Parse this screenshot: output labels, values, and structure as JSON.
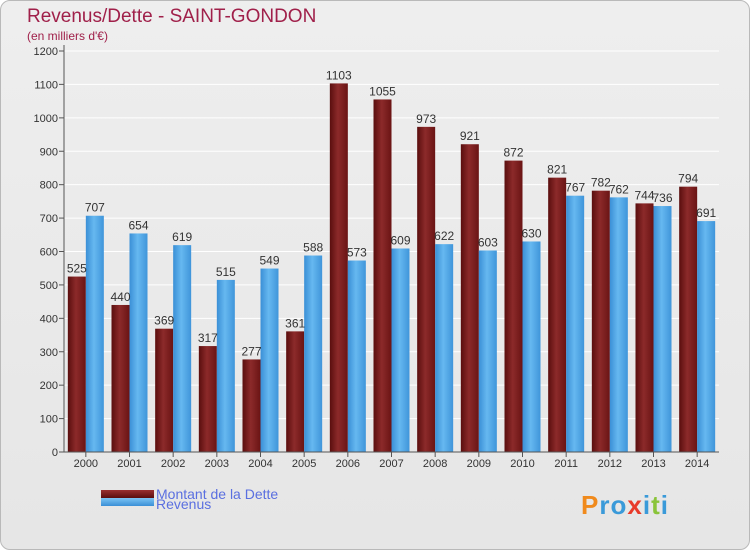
{
  "header": {
    "title": "Revenus/Dette - SAINT-GONDON",
    "subtitle": "(en milliers d'€)"
  },
  "legend": {
    "items": [
      {
        "label": "Montant de la Dette",
        "color": "#7a1a1a"
      },
      {
        "label": "Revenus",
        "color": "#4aa3e6"
      }
    ]
  },
  "logo": {
    "text": "Proxiti",
    "letters": [
      {
        "ch": "P",
        "color": "#f08a1c"
      },
      {
        "ch": "r",
        "color": "#3a9ad9"
      },
      {
        "ch": "o",
        "color": "#3a9ad9"
      },
      {
        "ch": "x",
        "color": "#e83a2a"
      },
      {
        "ch": "i",
        "color": "#3a9ad9"
      },
      {
        "ch": "t",
        "color": "#8ac43a"
      },
      {
        "ch": "i",
        "color": "#3a9ad9"
      }
    ]
  },
  "chart_data": {
    "type": "bar",
    "title": "Revenus/Dette - SAINT-GONDON",
    "subtitle": "(en milliers d'€)",
    "xlabel": "",
    "ylabel": "",
    "ylim": [
      0,
      1200
    ],
    "yticks": [
      0,
      100,
      200,
      300,
      400,
      500,
      600,
      700,
      800,
      900,
      1000,
      1100,
      1200
    ],
    "grid": true,
    "legend_position": "bottom-left",
    "categories": [
      "2000",
      "2001",
      "2002",
      "2003",
      "2004",
      "2005",
      "2006",
      "2007",
      "2008",
      "2009",
      "2010",
      "2011",
      "2012",
      "2013",
      "2014"
    ],
    "series": [
      {
        "name": "Montant de la Dette",
        "color": "#7a1a1a",
        "values": [
          525,
          440,
          369,
          317,
          277,
          361,
          1103,
          1055,
          973,
          921,
          872,
          821,
          782,
          744,
          794
        ]
      },
      {
        "name": "Revenus",
        "color": "#4aa3e6",
        "values": [
          707,
          654,
          619,
          515,
          549,
          588,
          573,
          609,
          622,
          603,
          630,
          767,
          762,
          736,
          691
        ]
      }
    ]
  }
}
